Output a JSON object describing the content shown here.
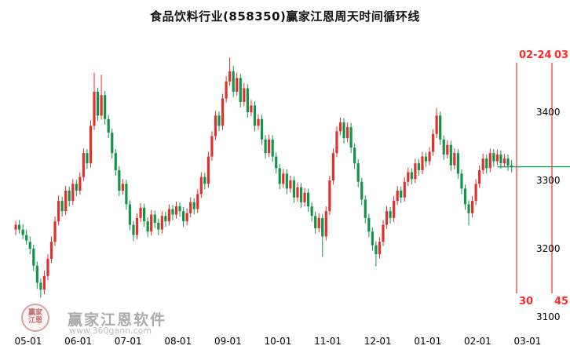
{
  "title": "食品饮料行业(858350)赢家江恩周天时间循环线",
  "colors": {
    "up": "#e0312c",
    "down": "#14934a",
    "cycle_line": "#ff2a2a",
    "cycle_text": "#ff2a2a",
    "price_line": "#18a05a",
    "axis_text": "#000000",
    "watermark": "#ababab"
  },
  "watermark": {
    "brand": "赢家江恩软件",
    "url": "www.360gann.com",
    "logo_text_top": "赢家",
    "logo_text_bottom": "江恩"
  },
  "axes": {
    "y_ticks": [
      3400,
      3300,
      3200,
      3100
    ],
    "x_ticks": [
      {
        "label": "05-01",
        "index": 4
      },
      {
        "label": "06-01",
        "index": 18
      },
      {
        "label": "07-01",
        "index": 32
      },
      {
        "label": "08-01",
        "index": 46
      },
      {
        "label": "09-01",
        "index": 60
      },
      {
        "label": "10-01",
        "index": 74
      },
      {
        "label": "11-01",
        "index": 88
      },
      {
        "label": "12-01",
        "index": 102
      },
      {
        "label": "01-01",
        "index": 116
      },
      {
        "label": "02-01",
        "index": 130
      },
      {
        "label": "03-01",
        "index": 144
      }
    ]
  },
  "cycle_lines": [
    {
      "x": 658,
      "top_label": "02-24",
      "bottom_label": "30"
    },
    {
      "x": 703,
      "top_label": "03",
      "bottom_label": "45"
    }
  ],
  "price_line": {
    "price": 3320
  },
  "chart_data": {
    "type": "candlestick",
    "title": "食品饮料行业(858350)赢家江恩周天时间循环线",
    "symbol": "858350",
    "name": "食品饮料行业",
    "x_range": [
      "05-01",
      "03-01"
    ],
    "ylim": [
      3100,
      3480
    ],
    "last_close": 3320,
    "ohlc_format": [
      "open",
      "high",
      "low",
      "close"
    ],
    "candles": [
      [
        3228,
        3240,
        3220,
        3235
      ],
      [
        3235,
        3242,
        3222,
        3228
      ],
      [
        3228,
        3236,
        3214,
        3220
      ],
      [
        3220,
        3228,
        3206,
        3212
      ],
      [
        3210,
        3218,
        3192,
        3200
      ],
      [
        3200,
        3206,
        3167,
        3175
      ],
      [
        3175,
        3181,
        3141,
        3150
      ],
      [
        3150,
        3156,
        3128,
        3140
      ],
      [
        3140,
        3168,
        3133,
        3160
      ],
      [
        3160,
        3192,
        3154,
        3185
      ],
      [
        3185,
        3218,
        3179,
        3210
      ],
      [
        3210,
        3247,
        3204,
        3240
      ],
      [
        3240,
        3278,
        3234,
        3270
      ],
      [
        3270,
        3276,
        3247,
        3255
      ],
      [
        3255,
        3292,
        3249,
        3285
      ],
      [
        3285,
        3291,
        3262,
        3270
      ],
      [
        3270,
        3302,
        3264,
        3295
      ],
      [
        3295,
        3301,
        3277,
        3285
      ],
      [
        3285,
        3312,
        3279,
        3305
      ],
      [
        3305,
        3347,
        3299,
        3340
      ],
      [
        3340,
        3346,
        3317,
        3325
      ],
      [
        3325,
        3388,
        3319,
        3380
      ],
      [
        3380,
        3458,
        3374,
        3430
      ],
      [
        3430,
        3436,
        3387,
        3395
      ],
      [
        3395,
        3455,
        3389,
        3425
      ],
      [
        3425,
        3431,
        3382,
        3390
      ],
      [
        3390,
        3396,
        3362,
        3370
      ],
      [
        3370,
        3376,
        3332,
        3340
      ],
      [
        3340,
        3346,
        3307,
        3315
      ],
      [
        3315,
        3321,
        3277,
        3285
      ],
      [
        3285,
        3302,
        3279,
        3295
      ],
      [
        3295,
        3301,
        3257,
        3265
      ],
      [
        3265,
        3271,
        3227,
        3235
      ],
      [
        3235,
        3241,
        3211,
        3220
      ],
      [
        3220,
        3252,
        3214,
        3245
      ],
      [
        3245,
        3267,
        3239,
        3260
      ],
      [
        3260,
        3266,
        3232,
        3240
      ],
      [
        3240,
        3246,
        3217,
        3225
      ],
      [
        3225,
        3257,
        3219,
        3250
      ],
      [
        3250,
        3256,
        3230,
        3238
      ],
      [
        3238,
        3244,
        3220,
        3228
      ],
      [
        3228,
        3255,
        3222,
        3248
      ],
      [
        3248,
        3254,
        3232,
        3240
      ],
      [
        3240,
        3265,
        3234,
        3258
      ],
      [
        3258,
        3264,
        3242,
        3250
      ],
      [
        3250,
        3269,
        3244,
        3262
      ],
      [
        3262,
        3268,
        3247,
        3255
      ],
      [
        3255,
        3261,
        3232,
        3240
      ],
      [
        3240,
        3259,
        3234,
        3252
      ],
      [
        3252,
        3275,
        3246,
        3268
      ],
      [
        3268,
        3274,
        3250,
        3258
      ],
      [
        3258,
        3287,
        3252,
        3280
      ],
      [
        3280,
        3312,
        3274,
        3305
      ],
      [
        3305,
        3311,
        3287,
        3295
      ],
      [
        3295,
        3342,
        3289,
        3335
      ],
      [
        3335,
        3372,
        3329,
        3365
      ],
      [
        3365,
        3402,
        3359,
        3395
      ],
      [
        3395,
        3401,
        3372,
        3380
      ],
      [
        3380,
        3427,
        3374,
        3420
      ],
      [
        3420,
        3453,
        3414,
        3445
      ],
      [
        3445,
        3480,
        3439,
        3460
      ],
      [
        3460,
        3468,
        3422,
        3430
      ],
      [
        3430,
        3458,
        3424,
        3450
      ],
      [
        3450,
        3456,
        3407,
        3415
      ],
      [
        3415,
        3443,
        3409,
        3435
      ],
      [
        3435,
        3441,
        3392,
        3400
      ],
      [
        3400,
        3418,
        3394,
        3410
      ],
      [
        3410,
        3416,
        3372,
        3380
      ],
      [
        3380,
        3397,
        3374,
        3390
      ],
      [
        3390,
        3396,
        3352,
        3360
      ],
      [
        3360,
        3366,
        3332,
        3340
      ],
      [
        3340,
        3367,
        3334,
        3360
      ],
      [
        3360,
        3366,
        3327,
        3335
      ],
      [
        3335,
        3341,
        3310,
        3318
      ],
      [
        3318,
        3324,
        3287,
        3295
      ],
      [
        3295,
        3317,
        3289,
        3310
      ],
      [
        3310,
        3316,
        3280,
        3288
      ],
      [
        3288,
        3307,
        3282,
        3300
      ],
      [
        3300,
        3306,
        3267,
        3275
      ],
      [
        3275,
        3297,
        3269,
        3290
      ],
      [
        3290,
        3296,
        3260,
        3268
      ],
      [
        3268,
        3289,
        3262,
        3282
      ],
      [
        3282,
        3288,
        3254,
        3262
      ],
      [
        3262,
        3268,
        3240,
        3248
      ],
      [
        3248,
        3254,
        3222,
        3230
      ],
      [
        3230,
        3252,
        3224,
        3245
      ],
      [
        3245,
        3251,
        3188,
        3218
      ],
      [
        3218,
        3262,
        3212,
        3255
      ],
      [
        3255,
        3307,
        3249,
        3300
      ],
      [
        3300,
        3347,
        3294,
        3340
      ],
      [
        3340,
        3379,
        3334,
        3372
      ],
      [
        3372,
        3392,
        3366,
        3385
      ],
      [
        3385,
        3391,
        3354,
        3362
      ],
      [
        3362,
        3385,
        3356,
        3378
      ],
      [
        3378,
        3384,
        3340,
        3348
      ],
      [
        3348,
        3354,
        3317,
        3325
      ],
      [
        3325,
        3331,
        3290,
        3298
      ],
      [
        3298,
        3304,
        3264,
        3272
      ],
      [
        3272,
        3278,
        3237,
        3245
      ],
      [
        3245,
        3251,
        3217,
        3225
      ],
      [
        3225,
        3231,
        3197,
        3205
      ],
      [
        3205,
        3211,
        3174,
        3192
      ],
      [
        3192,
        3217,
        3186,
        3210
      ],
      [
        3210,
        3242,
        3204,
        3235
      ],
      [
        3235,
        3262,
        3229,
        3255
      ],
      [
        3255,
        3261,
        3237,
        3245
      ],
      [
        3245,
        3277,
        3239,
        3270
      ],
      [
        3270,
        3292,
        3264,
        3285
      ],
      [
        3285,
        3291,
        3267,
        3275
      ],
      [
        3275,
        3305,
        3269,
        3298
      ],
      [
        3298,
        3319,
        3292,
        3312
      ],
      [
        3312,
        3318,
        3294,
        3302
      ],
      [
        3302,
        3332,
        3296,
        3325
      ],
      [
        3325,
        3331,
        3307,
        3315
      ],
      [
        3315,
        3342,
        3309,
        3335
      ],
      [
        3335,
        3341,
        3320,
        3328
      ],
      [
        3328,
        3349,
        3322,
        3342
      ],
      [
        3342,
        3375,
        3336,
        3368
      ],
      [
        3368,
        3406,
        3362,
        3395
      ],
      [
        3395,
        3401,
        3352,
        3360
      ],
      [
        3360,
        3366,
        3330,
        3338
      ],
      [
        3338,
        3359,
        3332,
        3352
      ],
      [
        3352,
        3358,
        3314,
        3322
      ],
      [
        3322,
        3347,
        3316,
        3340
      ],
      [
        3340,
        3346,
        3302,
        3310
      ],
      [
        3310,
        3316,
        3280,
        3288
      ],
      [
        3288,
        3294,
        3257,
        3265
      ],
      [
        3265,
        3271,
        3234,
        3252
      ],
      [
        3252,
        3277,
        3246,
        3270
      ],
      [
        3270,
        3302,
        3264,
        3295
      ],
      [
        3295,
        3322,
        3289,
        3315
      ],
      [
        3315,
        3339,
        3309,
        3332
      ],
      [
        3332,
        3338,
        3310,
        3318
      ],
      [
        3318,
        3347,
        3312,
        3340
      ],
      [
        3340,
        3346,
        3320,
        3328
      ],
      [
        3328,
        3345,
        3322,
        3338
      ],
      [
        3338,
        3344,
        3317,
        3325
      ],
      [
        3325,
        3339,
        3319,
        3332
      ],
      [
        3332,
        3338,
        3314,
        3322
      ],
      [
        3322,
        3330,
        3312,
        3320
      ]
    ]
  }
}
